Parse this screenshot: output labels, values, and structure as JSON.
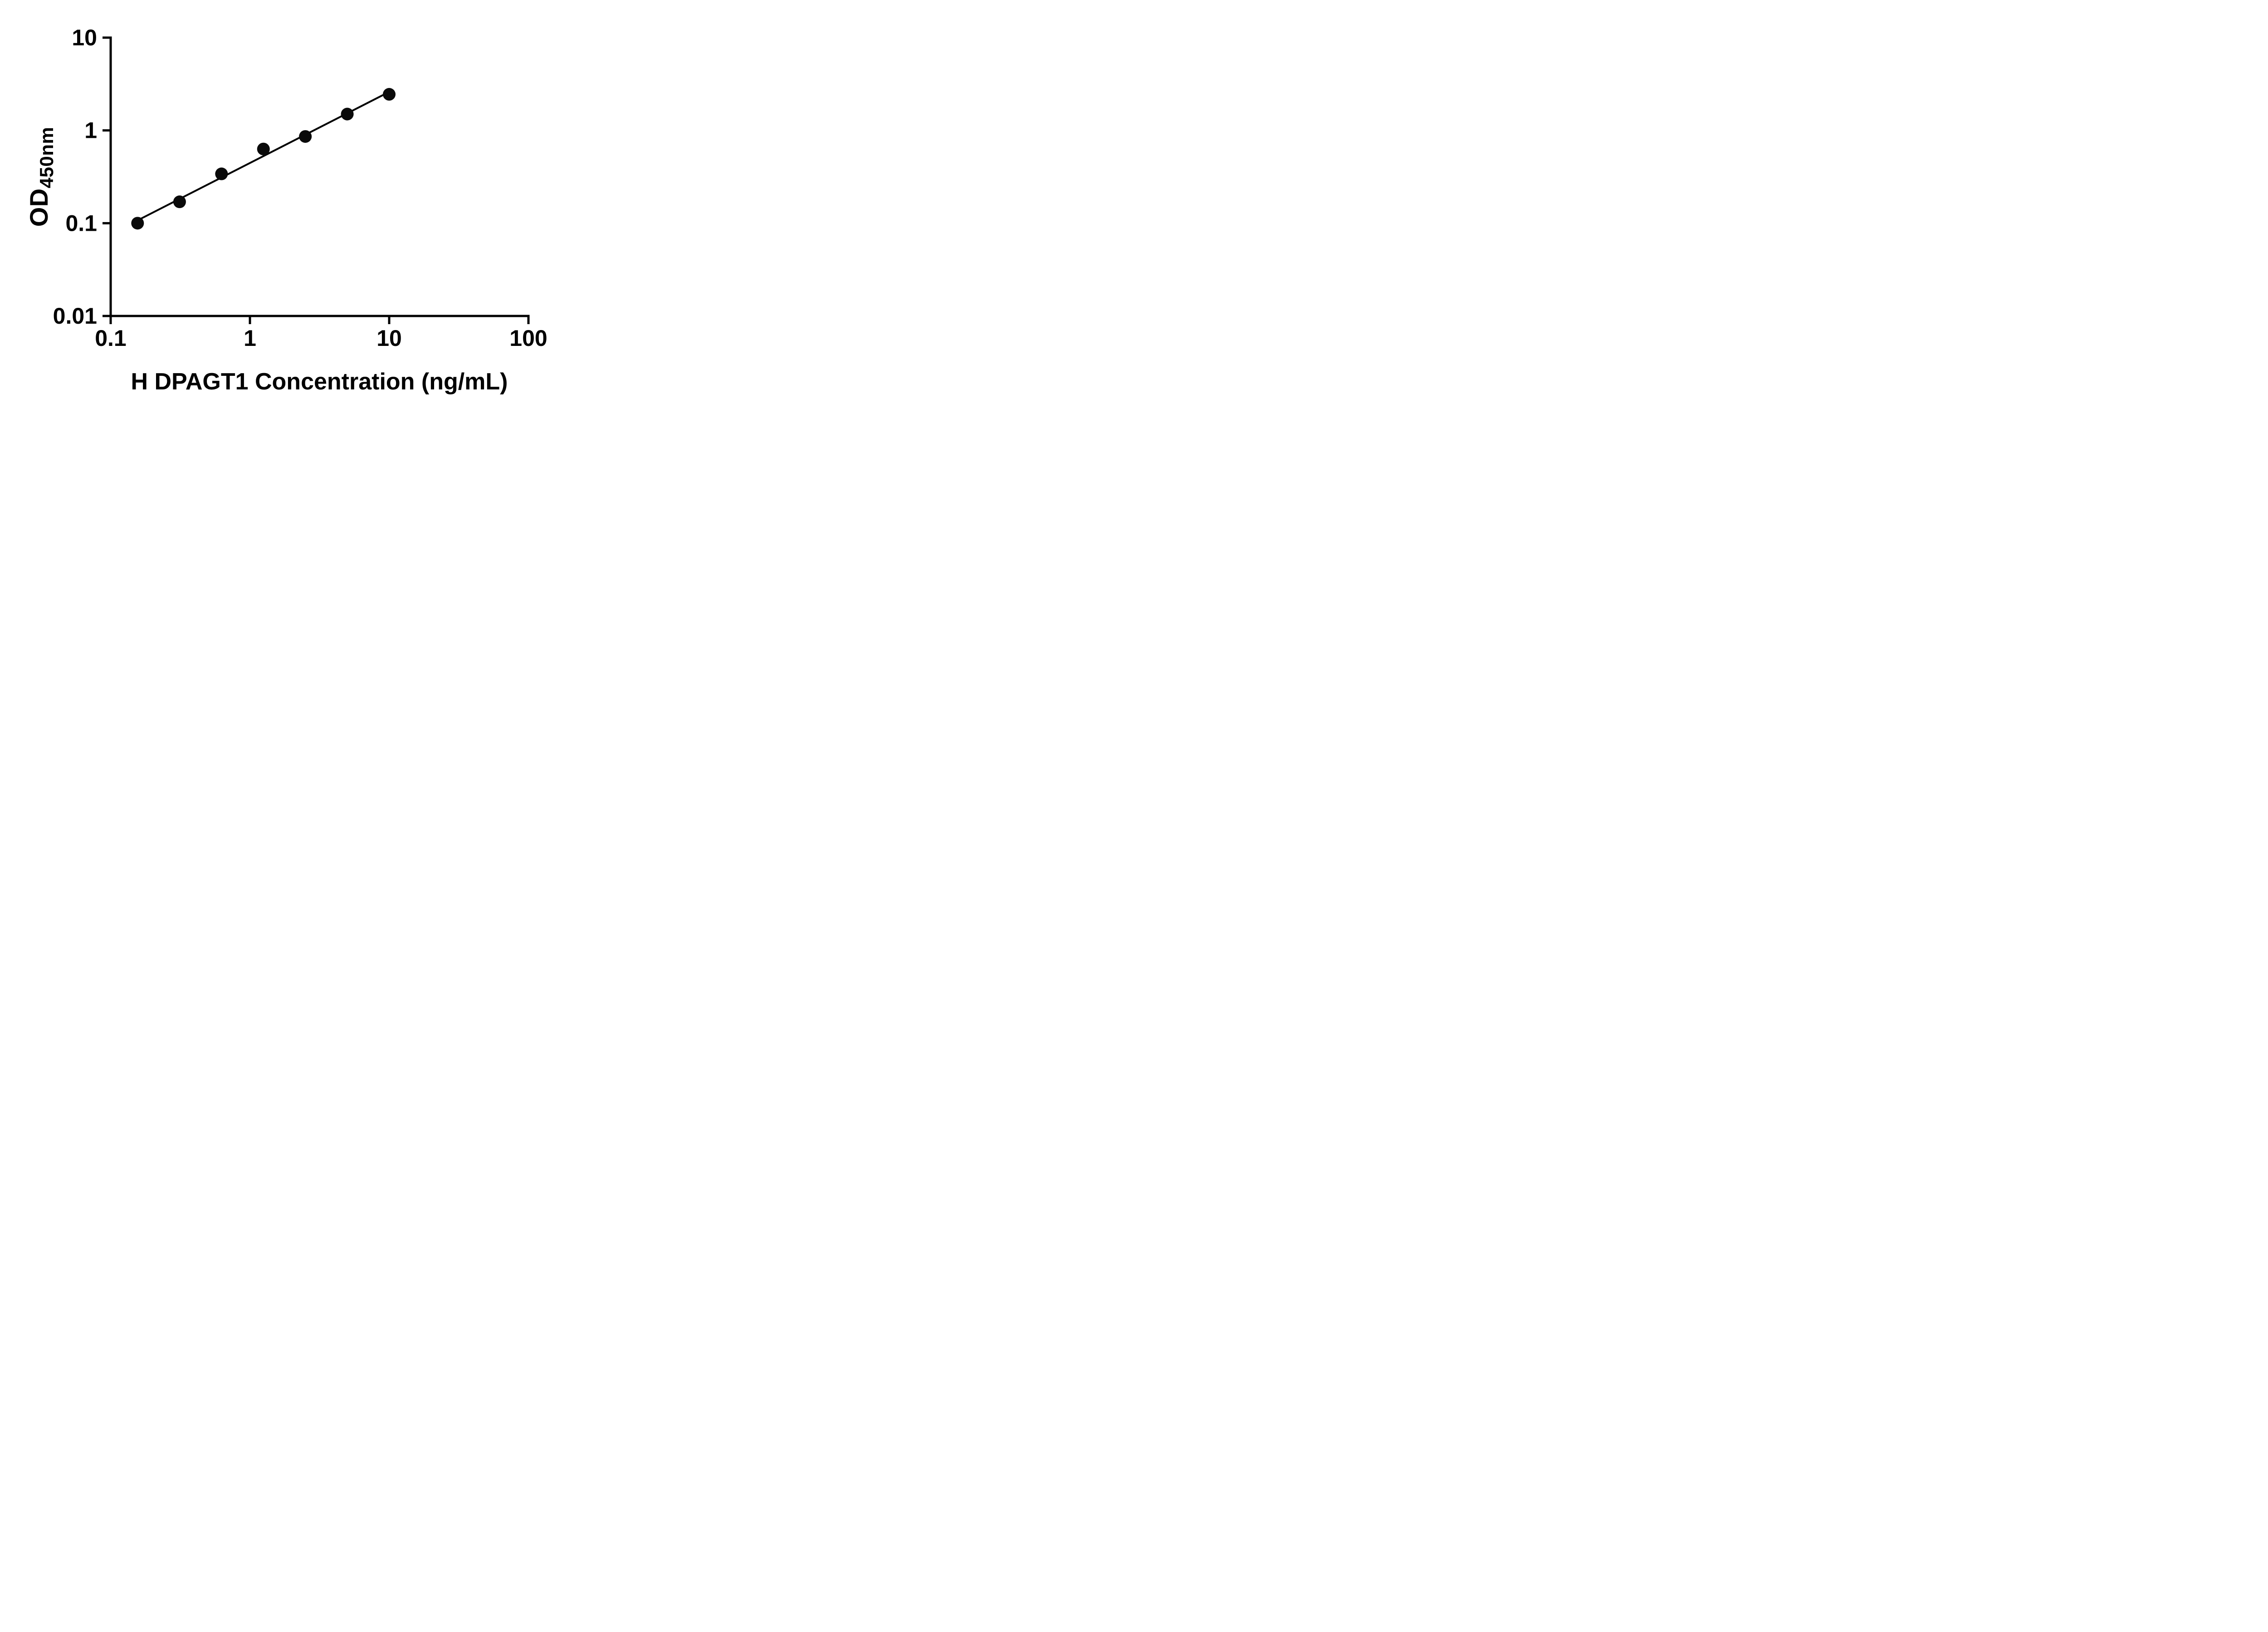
{
  "chart_data": {
    "type": "scatter",
    "title": "",
    "xlabel": "H DPAGT1 Concentration (ng/mL)",
    "ylabel_main": "OD",
    "ylabel_sub": "450nm",
    "x_scale": "log",
    "y_scale": "log",
    "xlim": [
      0.1,
      100
    ],
    "ylim": [
      0.01,
      10
    ],
    "x_ticks": [
      {
        "v": 0.1,
        "label": "0.1"
      },
      {
        "v": 1,
        "label": "1"
      },
      {
        "v": 10,
        "label": "10"
      },
      {
        "v": 100,
        "label": "100"
      }
    ],
    "y_ticks": [
      {
        "v": 0.01,
        "label": "0.01"
      },
      {
        "v": 0.1,
        "label": "0.1"
      },
      {
        "v": 1,
        "label": "1"
      },
      {
        "v": 10,
        "label": "10"
      }
    ],
    "points": [
      {
        "x": 0.156,
        "y": 0.1
      },
      {
        "x": 0.3125,
        "y": 0.17
      },
      {
        "x": 0.625,
        "y": 0.34
      },
      {
        "x": 1.25,
        "y": 0.63
      },
      {
        "x": 2.5,
        "y": 0.86
      },
      {
        "x": 5,
        "y": 1.5
      },
      {
        "x": 10,
        "y": 2.45
      }
    ],
    "trendline": true,
    "legend": false,
    "grid": false,
    "colors": {
      "axis": "#000000",
      "point": "#0a0a0a",
      "line": "#000000",
      "background": "#ffffff",
      "text": "#000000"
    }
  }
}
